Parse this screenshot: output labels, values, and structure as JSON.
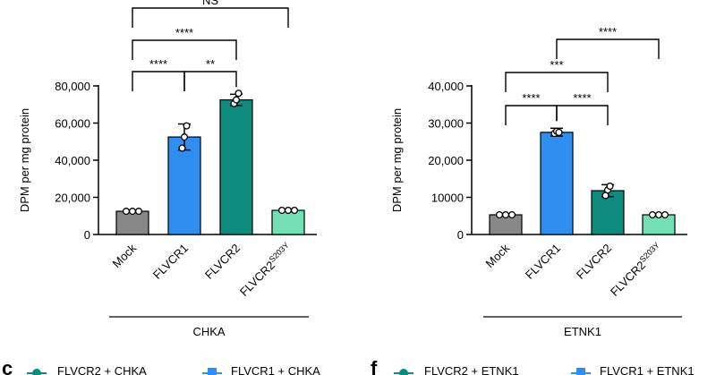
{
  "figure": {
    "bottom_row": {
      "c": {
        "panel_letter": "c",
        "legend": [
          "FLVCR2 + CHKA",
          "FLVCR1 + CHKA"
        ]
      },
      "f": {
        "panel_letter": "f",
        "legend": [
          "FLVCR2 + ETNK1",
          "FLVCR1 + ETNK1"
        ]
      }
    }
  },
  "chart_data": [
    {
      "type": "bar",
      "group_label": "CHKA",
      "ylabel": "DPM per mg protein",
      "ylim": [
        0,
        80000
      ],
      "yticks": [
        "0",
        "20,000",
        "40,000",
        "60,000",
        "80,000"
      ],
      "ytick_values": [
        0,
        20000,
        40000,
        60000,
        80000
      ],
      "categories": [
        {
          "base": "Mock",
          "sup": ""
        },
        {
          "base": "FLVCR1",
          "sup": ""
        },
        {
          "base": "FLVCR2",
          "sup": ""
        },
        {
          "base": "FLVCR2",
          "sup": "S203Y"
        }
      ],
      "values": [
        12500,
        52500,
        72500,
        13000
      ],
      "error": [
        [
          12000,
          13000
        ],
        [
          45500,
          59500
        ],
        [
          69500,
          75500
        ],
        [
          12500,
          13500
        ]
      ],
      "points": [
        [
          12500,
          12500,
          12500
        ],
        [
          46500,
          52500,
          58500
        ],
        [
          70500,
          72500,
          76000
        ],
        [
          13000,
          13000,
          13000
        ]
      ],
      "colors": [
        "#888888",
        "#2e8ff0",
        "#0e8a7e",
        "#72e0b4"
      ],
      "significance": [
        {
          "from": 0,
          "to": 1,
          "level": 3,
          "label": "****"
        },
        {
          "from": 1,
          "to": 2,
          "level": 3,
          "label": "**"
        },
        {
          "from": 0,
          "to": 2,
          "level": 2,
          "label": "****"
        },
        {
          "from": 0,
          "to": 3,
          "level": 1,
          "label": "NS"
        }
      ]
    },
    {
      "type": "bar",
      "group_label": "ETNK1",
      "ylabel": "DPM per mg protein",
      "ylim": [
        0,
        40000
      ],
      "yticks": [
        "0",
        "10000",
        "20,000",
        "30,000",
        "40,000"
      ],
      "ytick_values": [
        0,
        10000,
        20000,
        30000,
        40000
      ],
      "categories": [
        {
          "base": "Mock",
          "sup": ""
        },
        {
          "base": "FLVCR1",
          "sup": ""
        },
        {
          "base": "FLVCR2",
          "sup": ""
        },
        {
          "base": "FLVCR2",
          "sup": "S203Y"
        }
      ],
      "values": [
        5300,
        27500,
        11800,
        5300
      ],
      "error": [
        [
          5000,
          5600
        ],
        [
          26500,
          28600
        ],
        [
          10200,
          13400
        ],
        [
          5000,
          5600
        ]
      ],
      "points": [
        [
          5300,
          5300,
          5300
        ],
        [
          27200,
          27800,
          27500
        ],
        [
          10500,
          12000,
          13000
        ],
        [
          5300,
          5300,
          5300
        ]
      ],
      "colors": [
        "#888888",
        "#2e8ff0",
        "#0e8a7e",
        "#72e0b4"
      ],
      "significance": [
        {
          "from": 0,
          "to": 1,
          "level": 4,
          "label": "****"
        },
        {
          "from": 1,
          "to": 2,
          "level": 4,
          "label": "****"
        },
        {
          "from": 0,
          "to": 2,
          "level": 3,
          "label": "***"
        },
        {
          "from": 1,
          "to": 3,
          "level": 2,
          "label": "****"
        }
      ]
    }
  ]
}
